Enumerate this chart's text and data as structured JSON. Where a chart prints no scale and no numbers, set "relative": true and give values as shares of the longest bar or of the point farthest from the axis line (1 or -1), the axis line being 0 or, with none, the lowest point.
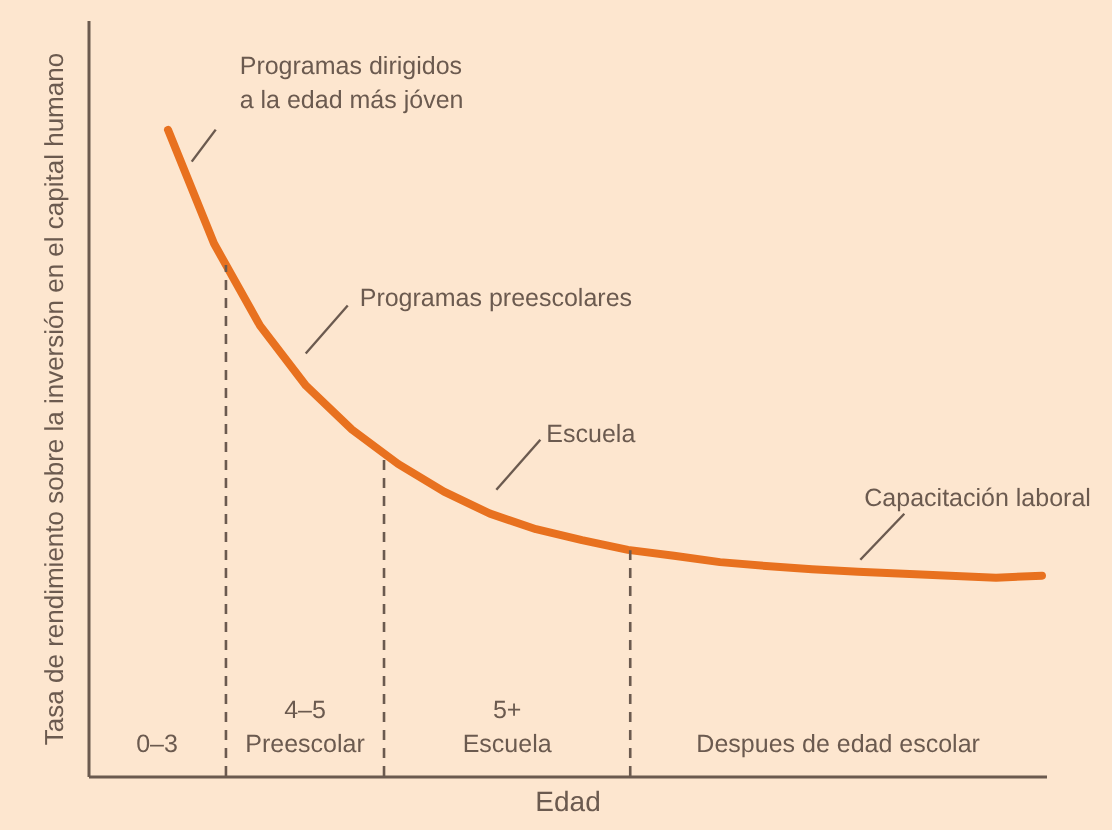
{
  "chart_data": {
    "type": "line",
    "relative": true,
    "xlabel": "Edad",
    "ylabel": "Tasa de rendimiento sobre la inversión en el capital humano",
    "categories": [
      null,
      null,
      null,
      null,
      null,
      null,
      null,
      null,
      null,
      null,
      null,
      null,
      null,
      null,
      null,
      null,
      null,
      null,
      null,
      null
    ],
    "marker": "none",
    "line_style": "solid",
    "series": [
      {
        "color": "#e8711f",
        "values": [
          1.0,
          0.824,
          0.697,
          0.604,
          0.536,
          0.483,
          0.44,
          0.406,
          0.382,
          0.365,
          0.35,
          0.341,
          0.331,
          0.325,
          0.32,
          0.316,
          0.313,
          0.31,
          0.307,
          0.31
        ]
      }
    ],
    "annotations": [
      "Programas dirigidos\na la edad más jóven",
      "Programas preescolares",
      "Escuela",
      "Capacitación laboral",
      "0–3",
      "4–5\nPreescolar",
      "5+\nEscuela",
      "Despues de edad escolar"
    ]
  }
}
